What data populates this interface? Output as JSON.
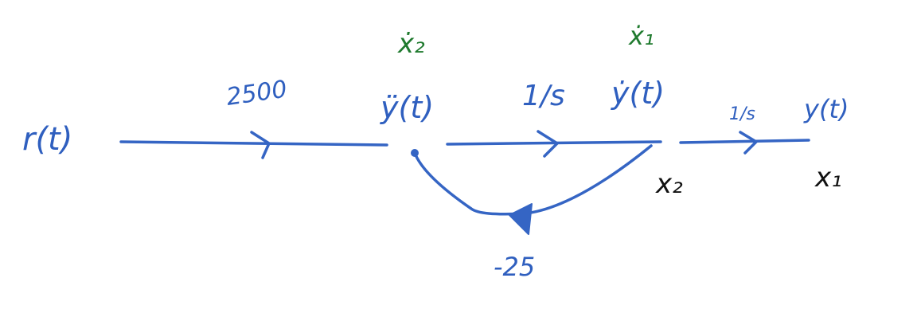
{
  "colors": {
    "ink_blue": "#3565c4",
    "ink_green": "#1f7a2e",
    "ink_black": "#111111"
  },
  "nodes": {
    "input": "r(t)",
    "accel": "ÿ(t)",
    "velocity": "ẏ(t)",
    "output": "y(t)"
  },
  "state_labels": {
    "x2_dot": "ẋ₂",
    "x1_dot": "ẋ₁",
    "x2": "x₂",
    "x1": "x₁"
  },
  "gains": {
    "input_gain": "2500",
    "integrator_1": "1/s",
    "integrator_2": "1/s",
    "feedback": "-25"
  }
}
